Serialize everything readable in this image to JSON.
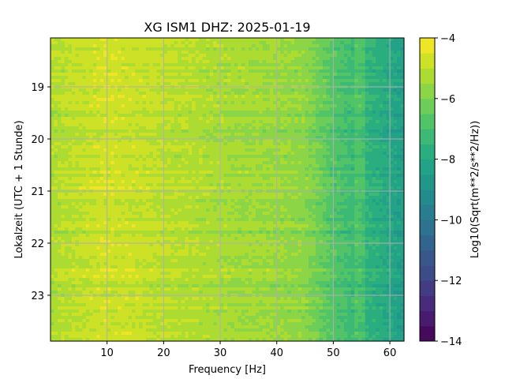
{
  "chart_data": {
    "type": "heatmap",
    "title": "XG ISM1  DHZ: 2025-01-19",
    "xlabel": "Frequency [Hz]",
    "ylabel": "Lokalzeit (UTC + 1 Stunde)",
    "colorbar_label": "Log10(Sqrt(m**2/s**2/Hz))",
    "colormap": "viridis",
    "xlim": [
      0,
      62.5
    ],
    "ylim": [
      18.06,
      23.88
    ],
    "y_inverted": true,
    "clim": [
      -14,
      -4
    ],
    "grid": true,
    "x_ticks": [
      10,
      20,
      30,
      40,
      50,
      60
    ],
    "y_ticks": [
      19,
      20,
      21,
      22,
      23
    ],
    "colorbar_ticks": [
      -14,
      -12,
      -10,
      -8,
      -6,
      -4
    ],
    "colorbar_levels": 20,
    "tick_labels": {
      "x": [
        "10",
        "20",
        "30",
        "40",
        "50",
        "60"
      ],
      "y": [
        "19",
        "20",
        "21",
        "22",
        "23"
      ],
      "colorbar": [
        "−14",
        "−12",
        "−10",
        "−8",
        "−6",
        "−4"
      ]
    },
    "approx_level_profile": {
      "frequency_hz": [
        0,
        5,
        10,
        15,
        20,
        25,
        30,
        35,
        40,
        45,
        48,
        50,
        53,
        55,
        58,
        60,
        62.5
      ],
      "log10_amplitude": [
        -5.2,
        -4.9,
        -4.7,
        -4.8,
        -5.0,
        -5.1,
        -5.3,
        -5.4,
        -5.5,
        -5.7,
        -6.3,
        -6.7,
        -7.1,
        -7.4,
        -7.7,
        -8.0,
        -8.4
      ]
    }
  }
}
